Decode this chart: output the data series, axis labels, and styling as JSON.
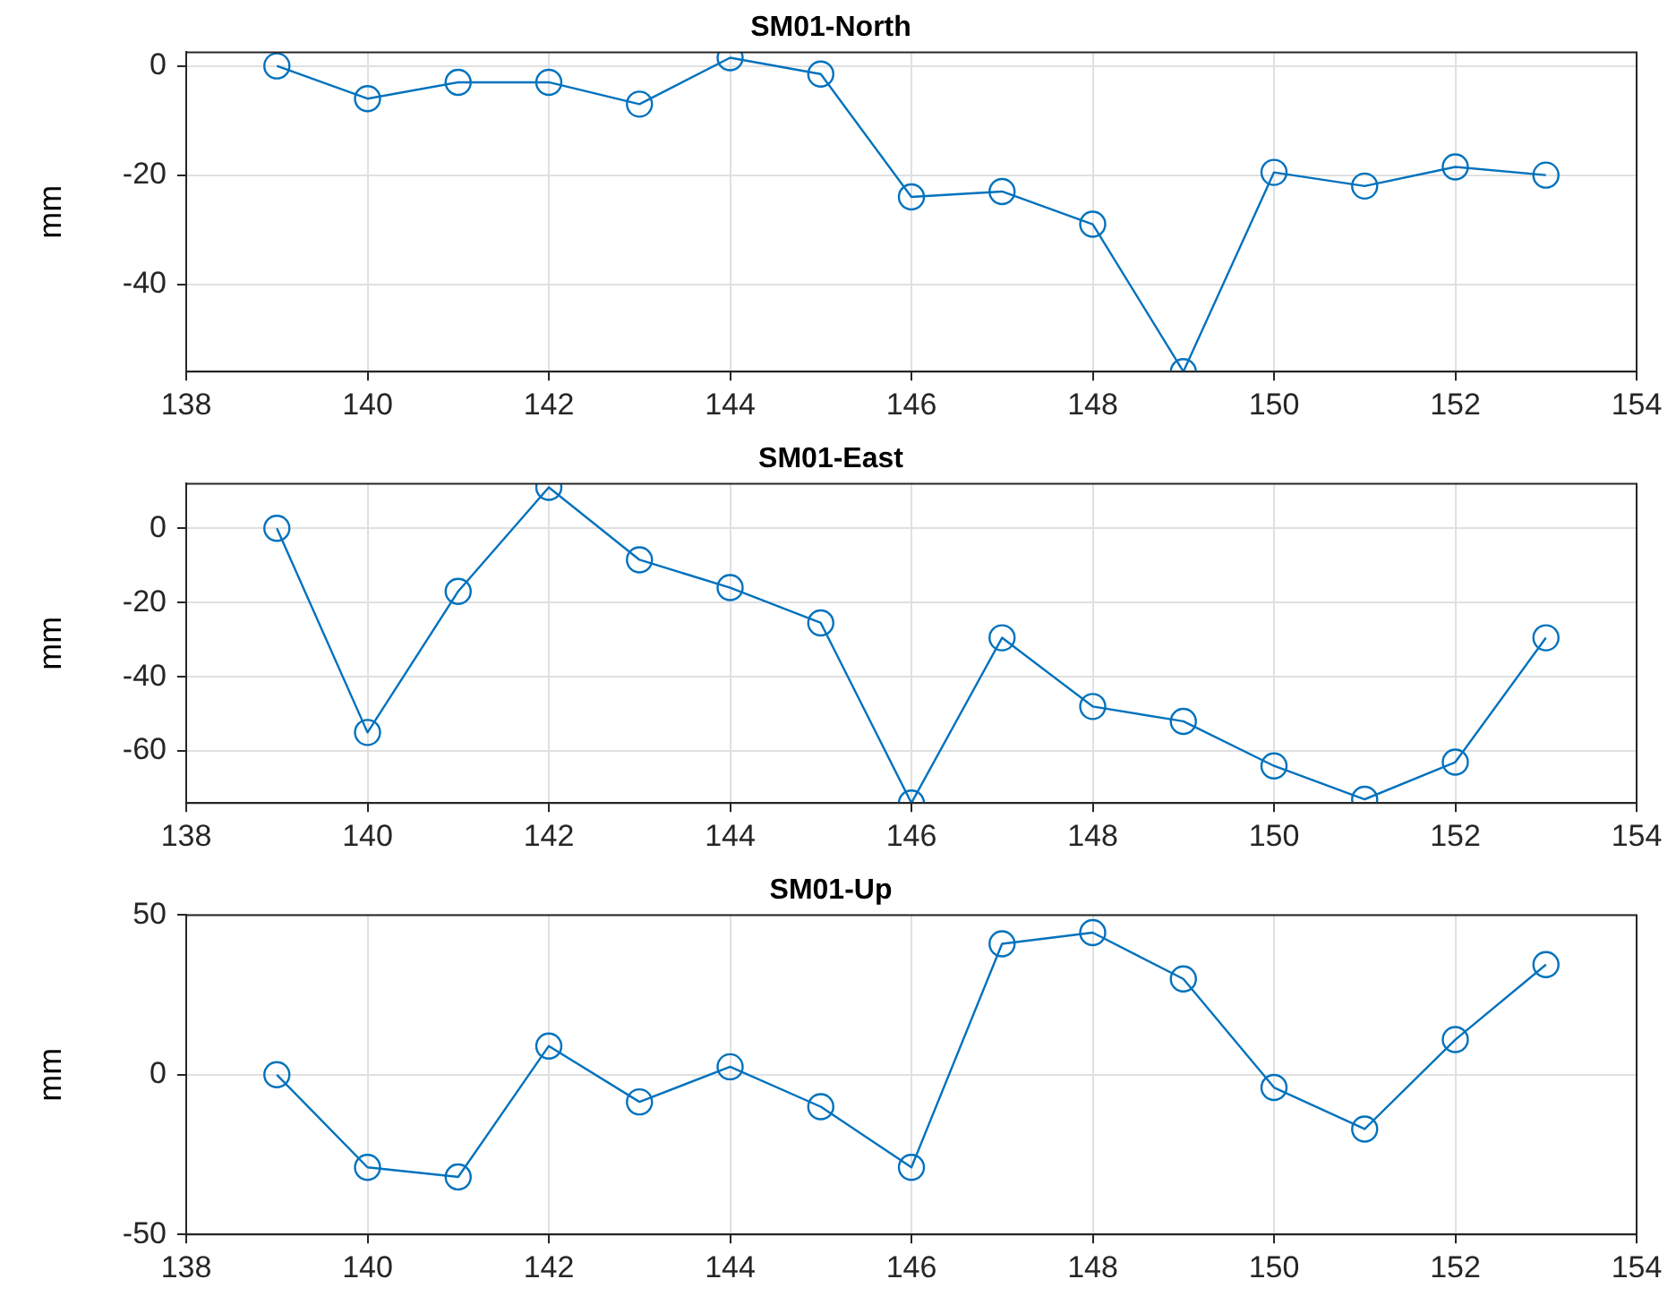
{
  "chart_data": [
    {
      "type": "line",
      "title": "SM01-North",
      "ylabel": "mm",
      "x": [
        139,
        140,
        141,
        142,
        143,
        144,
        145,
        146,
        147,
        148,
        149,
        150,
        151,
        152,
        153
      ],
      "values": [
        0,
        -6,
        -3,
        -3,
        -7,
        1.5,
        -1.5,
        -24,
        -23,
        -29,
        -56,
        -19.5,
        -22,
        -18.5,
        -20
      ],
      "color": "#0072bd",
      "xlim": [
        138,
        154
      ],
      "xticks": [
        138,
        140,
        142,
        144,
        146,
        148,
        150,
        152,
        154
      ],
      "ylim": [
        -56,
        2.5
      ],
      "yticks": [
        -40,
        -20,
        0
      ],
      "grid": true,
      "marker": "circle",
      "legend": false
    },
    {
      "type": "line",
      "title": "SM01-East",
      "ylabel": "mm",
      "x": [
        139,
        140,
        141,
        142,
        143,
        144,
        145,
        146,
        147,
        148,
        149,
        150,
        151,
        152,
        153
      ],
      "values": [
        0,
        -55,
        -17,
        11,
        -8.5,
        -16,
        -25.5,
        -74,
        -29.5,
        -48,
        -52,
        -64,
        -73,
        -63,
        -29.5
      ],
      "color": "#0072bd",
      "xlim": [
        138,
        154
      ],
      "xticks": [
        138,
        140,
        142,
        144,
        146,
        148,
        150,
        152,
        154
      ],
      "ylim": [
        -74,
        12
      ],
      "yticks": [
        -60,
        -40,
        -20,
        0
      ],
      "grid": true,
      "marker": "circle",
      "legend": false
    },
    {
      "type": "line",
      "title": "SM01-Up",
      "ylabel": "mm",
      "x": [
        139,
        140,
        141,
        142,
        143,
        144,
        145,
        146,
        147,
        148,
        149,
        150,
        151,
        152,
        153
      ],
      "values": [
        0,
        -29,
        -32,
        9,
        -8.5,
        2.5,
        -10,
        -29,
        41,
        44.5,
        30,
        -4,
        -17,
        11,
        34.5
      ],
      "color": "#0072bd",
      "xlim": [
        138,
        154
      ],
      "xticks": [
        138,
        140,
        142,
        144,
        146,
        148,
        150,
        152,
        154
      ],
      "ylim": [
        -50,
        50
      ],
      "yticks": [
        -50,
        0,
        50
      ],
      "grid": true,
      "marker": "circle",
      "legend": false
    }
  ]
}
